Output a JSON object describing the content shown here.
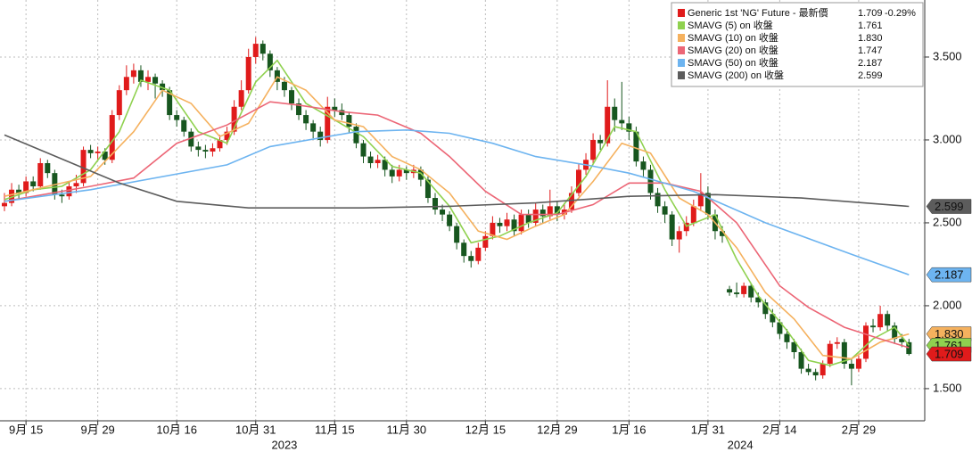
{
  "chart_data": {
    "type": "candlestick",
    "name": "Generic 1st 'NG' Future - 最新價",
    "last": {
      "value": 1.709,
      "label": "1.709"
    },
    "change": "-0.29%",
    "color_up": "#e01b1b",
    "color_down": "#17561f",
    "categories": [
      null,
      null,
      null,
      "9月 15",
      null,
      null,
      null,
      null,
      null,
      null,
      null,
      null,
      null,
      "9月 29",
      null,
      null,
      null,
      null,
      null,
      null,
      null,
      null,
      null,
      null,
      "10月 16",
      null,
      null,
      null,
      null,
      null,
      null,
      null,
      null,
      null,
      null,
      "10月 31",
      null,
      null,
      null,
      null,
      null,
      null,
      null,
      null,
      null,
      null,
      "11月 15",
      null,
      null,
      null,
      null,
      null,
      null,
      null,
      null,
      null,
      "11月 30",
      null,
      null,
      null,
      null,
      null,
      null,
      null,
      null,
      null,
      null,
      "12月 15",
      null,
      null,
      null,
      null,
      null,
      null,
      null,
      null,
      null,
      "12月 29",
      null,
      null,
      null,
      null,
      null,
      null,
      null,
      null,
      null,
      "1月 16",
      null,
      null,
      null,
      null,
      null,
      null,
      null,
      null,
      null,
      null,
      "1月 31",
      null,
      null,
      null,
      null,
      null,
      null,
      null,
      null,
      null,
      "2月 14",
      null,
      null,
      null,
      null,
      null,
      null,
      null,
      null,
      null,
      null,
      "2月 29",
      null,
      null,
      null,
      null,
      null,
      null,
      null
    ],
    "x_groups": [
      {
        "label": "2023",
        "start": 0,
        "end": 78
      },
      {
        "label": "2024",
        "start": 79,
        "end": 126
      }
    ],
    "open": [
      2.6,
      2.62,
      2.7,
      2.68,
      2.75,
      2.72,
      2.86,
      2.8,
      2.67,
      2.66,
      2.72,
      2.74,
      2.94,
      2.92,
      2.93,
      2.88,
      3.15,
      3.3,
      3.38,
      3.42,
      3.35,
      3.38,
      3.34,
      3.3,
      3.15,
      3.12,
      3.05,
      2.96,
      2.94,
      2.93,
      2.95,
      3.0,
      3.05,
      3.2,
      3.3,
      3.5,
      3.58,
      3.52,
      3.42,
      3.35,
      3.3,
      3.22,
      3.15,
      3.1,
      3.05,
      3.0,
      3.2,
      3.18,
      3.15,
      3.08,
      2.98,
      2.9,
      2.86,
      2.88,
      2.82,
      2.78,
      2.82,
      2.8,
      2.82,
      2.76,
      2.65,
      2.58,
      2.55,
      2.48,
      2.38,
      2.3,
      2.27,
      2.35,
      2.42,
      2.5,
      2.48,
      2.52,
      2.45,
      2.55,
      2.5,
      2.58,
      2.54,
      2.6,
      2.55,
      2.58,
      2.68,
      2.82,
      2.88,
      3.0,
      2.98,
      3.2,
      3.12,
      3.1,
      3.05,
      2.87,
      2.82,
      2.68,
      2.6,
      2.55,
      2.4,
      2.45,
      2.5,
      2.6,
      2.68,
      2.55,
      2.45,
      2.1,
      2.08,
      2.07,
      2.12,
      2.05,
      2.02,
      1.95,
      1.9,
      1.83,
      1.78,
      1.72,
      1.62,
      1.6,
      1.58,
      1.65,
      1.77,
      1.78,
      1.65,
      1.62,
      1.68,
      1.88,
      1.87,
      1.95,
      1.88,
      1.8,
      1.78
    ],
    "high": [
      2.68,
      2.74,
      2.73,
      2.78,
      2.78,
      2.89,
      2.88,
      2.82,
      2.7,
      2.75,
      2.79,
      2.96,
      2.97,
      2.96,
      2.95,
      3.18,
      3.33,
      3.45,
      3.46,
      3.45,
      3.42,
      3.4,
      3.36,
      3.32,
      3.18,
      3.14,
      3.07,
      2.99,
      2.97,
      2.98,
      3.03,
      3.08,
      3.24,
      3.36,
      3.55,
      3.62,
      3.6,
      3.54,
      3.44,
      3.38,
      3.32,
      3.25,
      3.18,
      3.12,
      3.08,
      3.26,
      3.25,
      3.22,
      3.17,
      3.1,
      3.0,
      2.93,
      2.91,
      2.9,
      2.85,
      2.85,
      2.84,
      2.85,
      2.84,
      2.78,
      2.68,
      2.61,
      2.57,
      2.5,
      2.4,
      2.33,
      2.38,
      2.45,
      2.54,
      2.53,
      2.56,
      2.55,
      2.58,
      2.58,
      2.62,
      2.61,
      2.7,
      2.63,
      2.62,
      2.72,
      2.86,
      2.92,
      3.04,
      3.03,
      3.36,
      3.25,
      3.35,
      3.14,
      3.08,
      2.9,
      2.85,
      2.71,
      2.63,
      2.57,
      2.48,
      2.54,
      2.64,
      2.8,
      2.72,
      2.58,
      2.48,
      2.12,
      2.14,
      2.14,
      2.13,
      2.08,
      2.04,
      1.98,
      1.92,
      1.86,
      1.8,
      1.74,
      1.65,
      1.62,
      1.67,
      1.79,
      1.81,
      1.8,
      1.68,
      1.7,
      1.9,
      1.92,
      2.0,
      1.97,
      1.9,
      1.83,
      1.8
    ],
    "low": [
      2.57,
      2.6,
      2.64,
      2.66,
      2.69,
      2.7,
      2.77,
      2.64,
      2.62,
      2.64,
      2.68,
      2.72,
      2.89,
      2.88,
      2.85,
      2.86,
      3.12,
      3.27,
      3.34,
      3.32,
      3.3,
      3.25,
      3.26,
      3.12,
      3.08,
      3.02,
      2.93,
      2.9,
      2.89,
      2.9,
      2.93,
      2.97,
      3.03,
      3.18,
      3.28,
      3.46,
      3.48,
      3.38,
      3.3,
      3.26,
      3.18,
      3.12,
      3.06,
      3.01,
      2.96,
      2.98,
      3.14,
      3.12,
      3.04,
      2.95,
      2.86,
      2.83,
      2.83,
      2.78,
      2.74,
      2.75,
      2.76,
      2.77,
      2.72,
      2.62,
      2.55,
      2.51,
      2.45,
      2.34,
      2.26,
      2.23,
      2.25,
      2.33,
      2.4,
      2.44,
      2.45,
      2.42,
      2.43,
      2.47,
      2.48,
      2.5,
      2.52,
      2.51,
      2.52,
      2.56,
      2.66,
      2.79,
      2.86,
      2.94,
      2.96,
      3.05,
      3.06,
      3.0,
      2.84,
      2.78,
      2.64,
      2.56,
      2.5,
      2.36,
      2.32,
      2.42,
      2.48,
      2.57,
      2.52,
      2.4,
      2.38,
      2.06,
      2.05,
      2.05,
      2.02,
      1.99,
      1.92,
      1.87,
      1.8,
      1.74,
      1.68,
      1.59,
      1.58,
      1.55,
      1.56,
      1.63,
      1.74,
      1.62,
      1.52,
      1.6,
      1.66,
      1.84,
      1.85,
      1.85,
      1.77,
      1.75,
      1.7
    ],
    "close": [
      2.62,
      2.7,
      2.68,
      2.75,
      2.72,
      2.86,
      2.8,
      2.67,
      2.66,
      2.72,
      2.74,
      2.94,
      2.92,
      2.93,
      2.88,
      3.15,
      3.3,
      3.38,
      3.42,
      3.35,
      3.38,
      3.34,
      3.3,
      3.15,
      3.12,
      3.05,
      2.96,
      2.94,
      2.93,
      2.95,
      3.0,
      3.05,
      3.2,
      3.3,
      3.5,
      3.58,
      3.52,
      3.42,
      3.35,
      3.3,
      3.22,
      3.15,
      3.1,
      3.05,
      3.0,
      3.2,
      3.18,
      3.15,
      3.08,
      2.98,
      2.9,
      2.86,
      2.88,
      2.82,
      2.78,
      2.82,
      2.8,
      2.82,
      2.76,
      2.65,
      2.58,
      2.55,
      2.48,
      2.38,
      2.3,
      2.27,
      2.35,
      2.42,
      2.5,
      2.48,
      2.52,
      2.45,
      2.55,
      2.5,
      2.58,
      2.54,
      2.6,
      2.55,
      2.58,
      2.68,
      2.82,
      2.88,
      3.0,
      2.98,
      3.2,
      3.12,
      3.1,
      3.05,
      2.87,
      2.82,
      2.68,
      2.6,
      2.55,
      2.4,
      2.45,
      2.5,
      2.6,
      2.68,
      2.55,
      2.45,
      2.42,
      2.08,
      2.07,
      2.12,
      2.05,
      2.02,
      1.95,
      1.9,
      1.83,
      1.78,
      1.72,
      1.62,
      1.6,
      1.58,
      1.65,
      1.77,
      1.78,
      1.65,
      1.62,
      1.68,
      1.88,
      1.87,
      1.95,
      1.88,
      1.8,
      1.78,
      1.709
    ],
    "series": [
      {
        "name": "SMAVG (5)  on 收盤",
        "color": "#8fd14f",
        "last": {
          "value": 1.761,
          "label": "1.761"
        },
        "x": [
          0,
          4,
          8,
          12,
          16,
          19,
          23,
          27,
          31,
          35,
          38,
          42,
          46,
          50,
          54,
          58,
          62,
          65,
          69,
          73,
          77,
          81,
          85,
          88,
          92,
          95,
          99,
          102,
          105,
          109,
          112,
          115,
          118,
          121,
          124,
          126
        ],
        "values": [
          2.64,
          2.7,
          2.72,
          2.82,
          3.05,
          3.36,
          3.3,
          3.05,
          2.98,
          3.35,
          3.48,
          3.22,
          3.12,
          3.02,
          2.84,
          2.8,
          2.6,
          2.38,
          2.42,
          2.5,
          2.56,
          2.78,
          3.08,
          3.05,
          2.7,
          2.48,
          2.55,
          2.28,
          2.06,
          1.85,
          1.67,
          1.64,
          1.68,
          1.8,
          1.87,
          1.761
        ]
      },
      {
        "name": "SMAVG (10)  on 收盤",
        "color": "#f5b15e",
        "last": {
          "value": 1.83,
          "label": "1.830"
        },
        "x": [
          0,
          6,
          12,
          18,
          22,
          26,
          30,
          34,
          38,
          42,
          46,
          50,
          54,
          58,
          62,
          66,
          70,
          74,
          78,
          82,
          86,
          90,
          94,
          98,
          102,
          106,
          110,
          114,
          118,
          122,
          126
        ],
        "values": [
          2.66,
          2.72,
          2.78,
          3.05,
          3.3,
          3.22,
          3.02,
          3.1,
          3.38,
          3.3,
          3.12,
          3.08,
          2.9,
          2.82,
          2.68,
          2.45,
          2.4,
          2.48,
          2.55,
          2.75,
          2.98,
          2.92,
          2.65,
          2.55,
          2.35,
          2.08,
          1.92,
          1.7,
          1.68,
          1.78,
          1.83
        ]
      },
      {
        "name": "SMAVG (20)  on 收盤",
        "color": "#ec6676",
        "last": {
          "value": 1.747,
          "label": "1.747"
        },
        "x": [
          0,
          12,
          18,
          24,
          31,
          37,
          41,
          47,
          52,
          58,
          62,
          67,
          72,
          77,
          82,
          87,
          92,
          97,
          102,
          108,
          112,
          117,
          122,
          126
        ],
        "values": [
          2.63,
          2.72,
          2.77,
          2.98,
          3.09,
          3.23,
          3.21,
          3.17,
          3.15,
          3.04,
          2.9,
          2.69,
          2.55,
          2.55,
          2.61,
          2.74,
          2.74,
          2.69,
          2.5,
          2.12,
          1.99,
          1.87,
          1.8,
          1.747
        ]
      },
      {
        "name": "SMAVG (50)  on 收盤",
        "color": "#6db4f0",
        "last": {
          "value": 2.187,
          "label": "2.187"
        },
        "x": [
          0,
          12,
          31,
          37,
          49,
          56,
          62,
          68,
          74,
          81,
          87,
          96,
          106,
          118,
          126
        ],
        "values": [
          2.63,
          2.7,
          2.85,
          2.96,
          3.05,
          3.06,
          3.04,
          2.98,
          2.9,
          2.85,
          2.8,
          2.69,
          2.5,
          2.31,
          2.187
        ]
      },
      {
        "name": "SMAVG (200)  on 收盤",
        "color": "#5c5c5c",
        "last": {
          "value": 2.599,
          "label": "2.599"
        },
        "x": [
          0,
          16,
          24,
          34,
          50,
          62,
          74,
          87,
          99,
          111,
          126
        ],
        "values": [
          3.03,
          2.74,
          2.63,
          2.59,
          2.59,
          2.6,
          2.62,
          2.66,
          2.67,
          2.65,
          2.599
        ]
      }
    ],
    "ylim": [
      1.306,
      3.844
    ],
    "yticks": [
      {
        "value": 1.5,
        "label": "1.500"
      },
      {
        "value": 2,
        "label": "2.000"
      },
      {
        "value": 2.5,
        "label": "2.500"
      },
      {
        "value": 3,
        "label": "3.000"
      },
      {
        "value": 3.5,
        "label": "3.500"
      }
    ],
    "grid": true
  }
}
